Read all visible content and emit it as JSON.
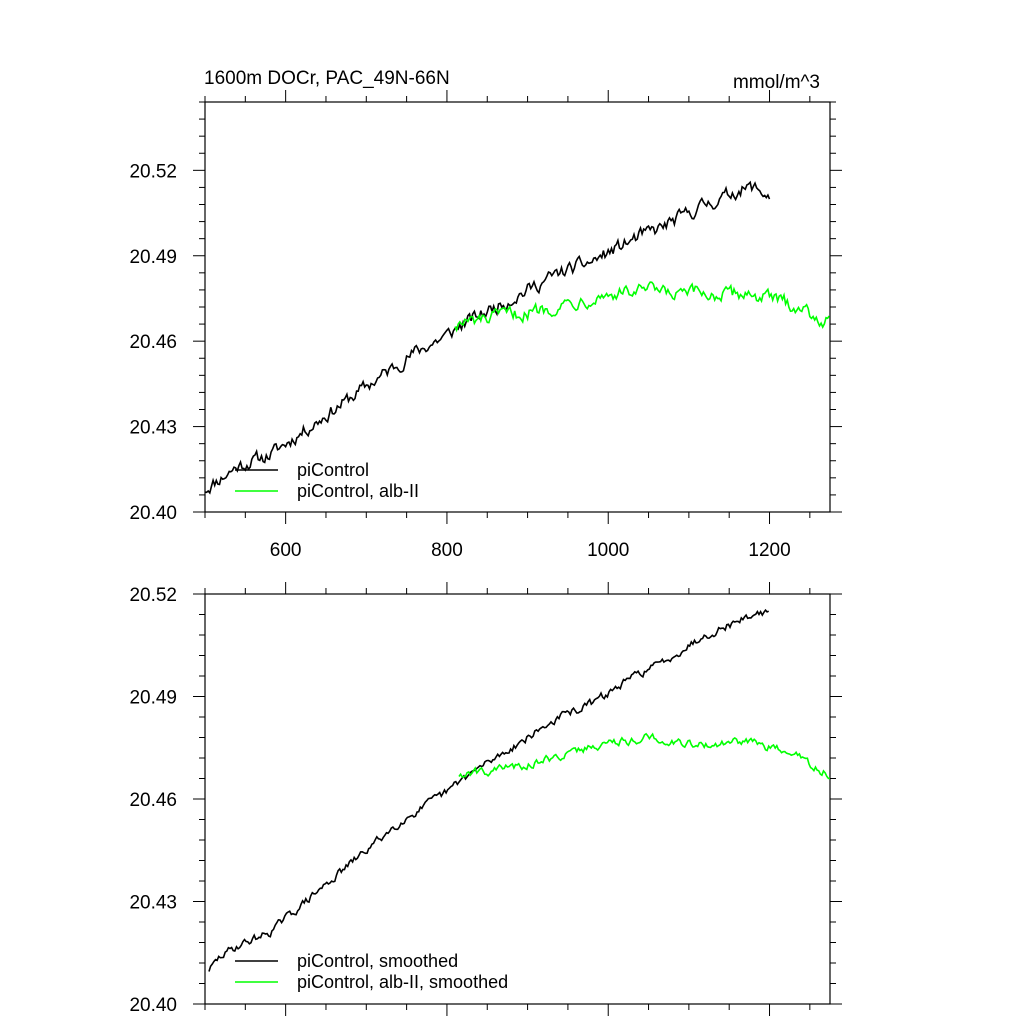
{
  "chart_data": [
    {
      "type": "line",
      "title": "1600m DOCr, PAC_49N-66N",
      "units": "mmol/m^3",
      "xlim": [
        500,
        1275
      ],
      "ylim": [
        20.4,
        20.544
      ],
      "xticks": [
        600,
        800,
        1000,
        1200
      ],
      "xtick_labels": [
        "600",
        "800",
        "1000",
        "1200"
      ],
      "yticks": [
        20.4,
        20.43,
        20.46,
        20.49,
        20.52
      ],
      "ytick_labels": [
        "20.40",
        "20.43",
        "20.46",
        "20.49",
        "20.52"
      ],
      "legend_position": "bottom-left",
      "series": [
        {
          "name": "piControl",
          "color": "#000000",
          "x": [
            500,
            520,
            540,
            560,
            580,
            600,
            620,
            640,
            660,
            680,
            700,
            720,
            740,
            760,
            780,
            800,
            820,
            840,
            860,
            880,
            900,
            920,
            940,
            960,
            980,
            1000,
            1020,
            1040,
            1060,
            1080,
            1100,
            1120,
            1140,
            1160,
            1180,
            1200
          ],
          "y": [
            20.408,
            20.412,
            20.416,
            20.418,
            20.42,
            20.424,
            20.428,
            20.432,
            20.436,
            20.44,
            20.444,
            20.448,
            20.452,
            20.456,
            20.459,
            20.462,
            20.466,
            20.469,
            20.472,
            20.475,
            20.478,
            20.481,
            20.484,
            20.486,
            20.488,
            20.491,
            20.494,
            20.497,
            20.499,
            20.502,
            20.505,
            20.508,
            20.51,
            20.513,
            20.514,
            20.511
          ],
          "noise": 0.0045
        },
        {
          "name": "piControl, alb-II",
          "color": "#00ff00",
          "x": [
            810,
            840,
            870,
            900,
            930,
            960,
            990,
            1020,
            1050,
            1080,
            1110,
            1140,
            1170,
            1200,
            1230,
            1250,
            1275
          ],
          "y": [
            20.466,
            20.467,
            20.469,
            20.47,
            20.472,
            20.474,
            20.476,
            20.477,
            20.478,
            20.476,
            20.477,
            20.476,
            20.477,
            20.475,
            20.473,
            20.47,
            20.466
          ],
          "noise": 0.0045
        }
      ]
    },
    {
      "type": "line",
      "title": "",
      "xlim": [
        500,
        1275
      ],
      "ylim": [
        20.4,
        20.52
      ],
      "xticks": [
        600,
        800,
        1000,
        1200
      ],
      "yticks": [
        20.4,
        20.43,
        20.46,
        20.49,
        20.52
      ],
      "ytick_labels": [
        "20.40",
        "20.43",
        "20.46",
        "20.49",
        "20.52"
      ],
      "legend_position": "bottom-left",
      "series": [
        {
          "name": "piControl, smoothed",
          "color": "#000000",
          "x": [
            505,
            520,
            540,
            560,
            580,
            600,
            620,
            640,
            660,
            680,
            700,
            720,
            740,
            760,
            780,
            800,
            820,
            840,
            860,
            880,
            900,
            920,
            940,
            960,
            980,
            1000,
            1020,
            1040,
            1060,
            1080,
            1100,
            1120,
            1140,
            1160,
            1180,
            1200
          ],
          "y": [
            20.41,
            20.414,
            20.417,
            20.419,
            20.421,
            20.425,
            20.429,
            20.433,
            20.437,
            20.441,
            20.445,
            20.449,
            20.453,
            20.456,
            20.459,
            20.462,
            20.466,
            20.469,
            20.472,
            20.475,
            20.478,
            20.481,
            20.484,
            20.486,
            20.488,
            20.491,
            20.494,
            20.497,
            20.499,
            20.502,
            20.505,
            20.508,
            20.51,
            20.512,
            20.514,
            20.515
          ],
          "noise": 0.0022
        },
        {
          "name": "piControl, alb-II, smoothed",
          "color": "#00ff00",
          "x": [
            815,
            840,
            870,
            900,
            930,
            960,
            990,
            1020,
            1050,
            1080,
            1110,
            1140,
            1170,
            1200,
            1230,
            1250,
            1275
          ],
          "y": [
            20.467,
            20.468,
            20.469,
            20.47,
            20.472,
            20.474,
            20.476,
            20.477,
            20.478,
            20.477,
            20.476,
            20.476,
            20.477,
            20.475,
            20.473,
            20.47,
            20.467
          ],
          "noise": 0.0022
        }
      ]
    }
  ]
}
